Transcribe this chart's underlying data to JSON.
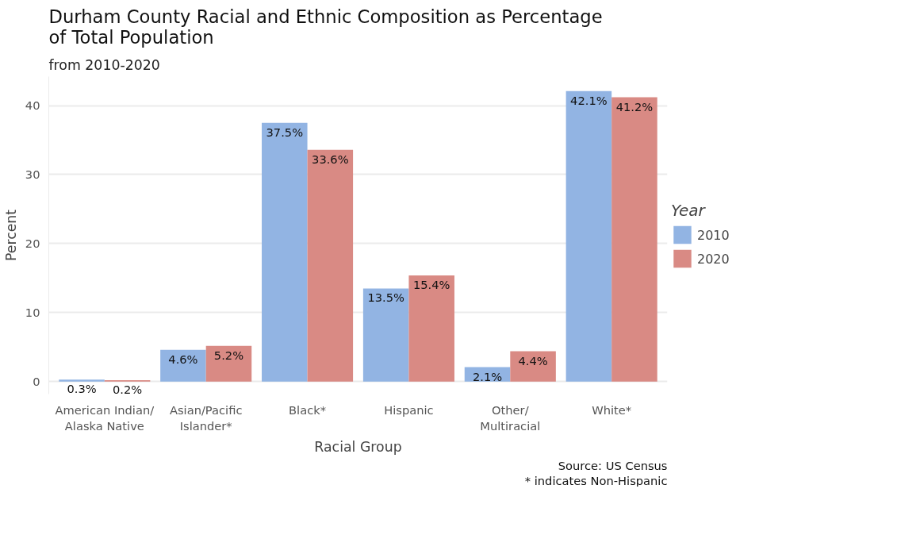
{
  "chart_data": {
    "type": "bar",
    "title": "Durham County Racial and Ethnic Composition as Percentage\nof Total Population",
    "subtitle": "from 2010-2020",
    "xlabel": "Racial Group",
    "ylabel": "Percent",
    "legend_title": "Year",
    "categories": [
      "American Indian/\nAlaska Native",
      "Asian/Pacific\nIslander*",
      "Black*",
      "Hispanic",
      "Other/\nMultiracial",
      "White*"
    ],
    "series": [
      {
        "name": "2010",
        "color": "#92b4e3",
        "values": [
          0.3,
          4.6,
          37.5,
          13.5,
          2.1,
          42.1
        ],
        "value_labels": [
          "0.3%",
          "4.6%",
          "37.5%",
          "13.5%",
          "2.1%",
          "42.1%"
        ]
      },
      {
        "name": "2020",
        "color": "#d98a84",
        "values": [
          0.2,
          5.2,
          33.6,
          15.4,
          4.4,
          41.2
        ],
        "value_labels": [
          "0.2%",
          "5.2%",
          "33.6%",
          "15.4%",
          "4.4%",
          "41.2%"
        ]
      }
    ],
    "ylim": [
      -1.8,
      44.2
    ],
    "yticks": [
      0,
      10,
      20,
      30,
      40
    ],
    "grid": "y",
    "legend": "right",
    "annotations": [
      "Source: US Census",
      "* indicates Non-Hispanic"
    ]
  }
}
